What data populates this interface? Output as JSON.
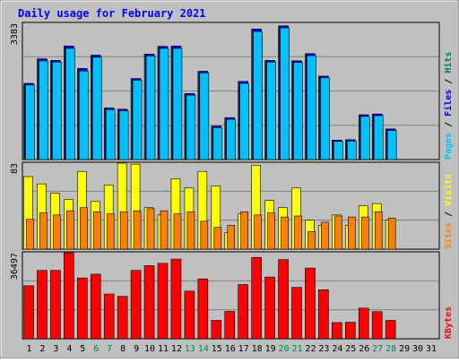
{
  "chart_data": {
    "title": "Daily usage for February 2021",
    "type": "bar",
    "days": [
      "1",
      "2",
      "3",
      "4",
      "5",
      "6",
      "7",
      "8",
      "9",
      "10",
      "11",
      "12",
      "13",
      "14",
      "15",
      "16",
      "17",
      "18",
      "19",
      "20",
      "21",
      "22",
      "23",
      "24",
      "25",
      "26",
      "27",
      "28",
      "29",
      "30",
      "31"
    ],
    "weekend_days": [
      "6",
      "7",
      "13",
      "14",
      "20",
      "21",
      "27",
      "28"
    ],
    "panels": [
      {
        "id": "hits-files-pages",
        "ylim": [
          0,
          3383
        ],
        "y_max_label": "3383",
        "right_legend": [
          {
            "label": "Hits",
            "color": "#00805c"
          },
          {
            "label": "Files",
            "color": "#0000ff"
          },
          {
            "label": "Pages",
            "color": "#00c0ff"
          }
        ],
        "series": [
          {
            "name": "Hits",
            "color": "#00805c",
            "values": [
              1890,
              2500,
              2460,
              2820,
              2260,
              2590,
              1280,
              1250,
              2010,
              2620,
              2810,
              2820,
              1640,
              2190,
              830,
              1040,
              1940,
              3240,
              2460,
              3320,
              2450,
              2630,
              2070,
              480,
              490,
              1110,
              1130,
              760,
              null,
              null,
              null
            ]
          },
          {
            "name": "Files",
            "color": "#0000ff",
            "values": [
              1890,
              2500,
              2460,
              2820,
              2260,
              2590,
              1280,
              1250,
              2010,
              2620,
              2810,
              2820,
              1640,
              2190,
              830,
              1040,
              1940,
              3240,
              2460,
              3320,
              2450,
              2630,
              2070,
              480,
              490,
              1110,
              1130,
              760,
              null,
              null,
              null
            ]
          },
          {
            "name": "Pages",
            "color": "#00c0ff",
            "values": [
              1850,
              2450,
              2420,
              2760,
              2200,
              2540,
              1240,
              1210,
              1970,
              2570,
              2760,
              2760,
              1600,
              2150,
              790,
              1000,
              1890,
              3180,
              2420,
              3270,
              2410,
              2580,
              2030,
              450,
              460,
              1070,
              1090,
              720,
              null,
              null,
              null
            ]
          }
        ]
      },
      {
        "id": "visits-sites",
        "ylim": [
          0,
          83
        ],
        "y_max_label": "83",
        "right_legend": [
          {
            "label": "Visits",
            "color": "#ffff00"
          },
          {
            "label": "Sites",
            "color": "#ff8000"
          }
        ],
        "series": [
          {
            "name": "Visits",
            "color": "#ffff00",
            "values": [
              70,
              63,
              54,
              48,
              75,
              46,
              62,
              83,
              82,
              40,
              33,
              68,
              59,
              75,
              61,
              16,
              34,
              81,
              47,
              40,
              59,
              28,
              23,
              33,
              23,
              42,
              44,
              28,
              null,
              null,
              null
            ]
          },
          {
            "name": "Sites",
            "color": "#ff8000",
            "values": [
              29,
              35,
              33,
              37,
              40,
              36,
              34,
              36,
              37,
              39,
              37,
              34,
              36,
              27,
              21,
              23,
              36,
              33,
              35,
              31,
              32,
              17,
              26,
              32,
              31,
              31,
              36,
              30,
              null,
              null,
              null
            ]
          }
        ]
      },
      {
        "id": "kbytes",
        "ylim": [
          0,
          36497
        ],
        "y_max_label": "36497",
        "right_legend": [
          {
            "label": "KBytes",
            "color": "#ff0000"
          }
        ],
        "series": [
          {
            "name": "KBytes",
            "color": "#ff0000",
            "values": [
              22500,
              29000,
              29000,
              36500,
              25800,
              27400,
              19000,
              18000,
              29000,
              31000,
              32000,
              33800,
              20200,
              25400,
              7800,
              11600,
              23000,
              34500,
              26200,
              33600,
              21800,
              30000,
              20800,
              6900,
              7000,
              13000,
              11500,
              7800,
              null,
              null,
              null
            ]
          }
        ]
      }
    ]
  }
}
